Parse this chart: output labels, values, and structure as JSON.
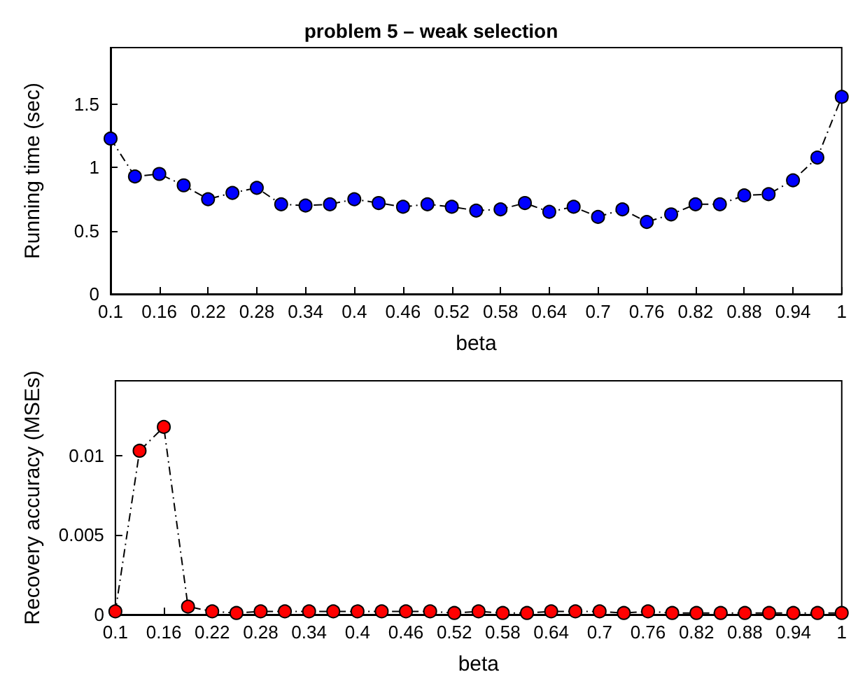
{
  "chart_data": [
    {
      "type": "line",
      "title": "problem 5 – weak selection",
      "xlabel": "beta",
      "ylabel": "Running time (sec)",
      "x": [
        0.1,
        0.13,
        0.16,
        0.19,
        0.22,
        0.25,
        0.28,
        0.31,
        0.34,
        0.37,
        0.4,
        0.43,
        0.46,
        0.49,
        0.52,
        0.55,
        0.58,
        0.61,
        0.64,
        0.67,
        0.7,
        0.73,
        0.76,
        0.79,
        0.82,
        0.85,
        0.88,
        0.91,
        0.94,
        0.97,
        1
      ],
      "series": [
        {
          "color": "#0000ff",
          "values": [
            1.23,
            0.93,
            0.95,
            0.86,
            0.75,
            0.8,
            0.84,
            0.71,
            0.7,
            0.71,
            0.75,
            0.72,
            0.69,
            0.71,
            0.69,
            0.66,
            0.67,
            0.72,
            0.65,
            0.69,
            0.61,
            0.67,
            0.57,
            0.63,
            0.71,
            0.71,
            0.78,
            0.79,
            0.9,
            1.08,
            1.56
          ]
        }
      ],
      "xlim": [
        0.1,
        1
      ],
      "xticks": [
        0.1,
        0.16,
        0.22,
        0.28,
        0.34,
        0.4,
        0.46,
        0.52,
        0.58,
        0.64,
        0.7,
        0.76,
        0.82,
        0.88,
        0.94,
        1
      ],
      "ylim": [
        0,
        1.95
      ],
      "yticks": [
        0,
        0.5,
        1,
        1.5
      ],
      "grid": false,
      "marker": "circle",
      "line_style": "dashed"
    },
    {
      "type": "line",
      "xlabel": "beta",
      "ylabel": "Recovery accuracy (MSEs)",
      "x": [
        0.1,
        0.13,
        0.16,
        0.19,
        0.22,
        0.25,
        0.28,
        0.31,
        0.34,
        0.37,
        0.4,
        0.43,
        0.46,
        0.49,
        0.52,
        0.55,
        0.58,
        0.61,
        0.64,
        0.67,
        0.7,
        0.73,
        0.76,
        0.79,
        0.82,
        0.85,
        0.88,
        0.91,
        0.94,
        0.97,
        1
      ],
      "series": [
        {
          "color": "#ff0000",
          "values": [
            0.0002,
            0.0103,
            0.0118,
            0.0005,
            0.0002,
            0.0001,
            0.0002,
            0.0002,
            0.0002,
            0.0002,
            0.0002,
            0.0002,
            0.0002,
            0.0002,
            0.0001,
            0.0002,
            0.0001,
            0.0001,
            0.0002,
            0.0002,
            0.0002,
            0.0001,
            0.0002,
            0.0001,
            0.0001,
            0.0001,
            0.0001,
            0.0001,
            0.0001,
            0.0001,
            0.0001
          ]
        }
      ],
      "xlim": [
        0.1,
        1
      ],
      "xticks": [
        0.1,
        0.16,
        0.22,
        0.28,
        0.34,
        0.4,
        0.46,
        0.52,
        0.58,
        0.64,
        0.7,
        0.76,
        0.82,
        0.88,
        0.94,
        1
      ],
      "ylim": [
        0,
        0.0147
      ],
      "yticks": [
        0,
        0.005,
        0.01
      ],
      "grid": false,
      "marker": "circle",
      "line_style": "dashed"
    }
  ]
}
